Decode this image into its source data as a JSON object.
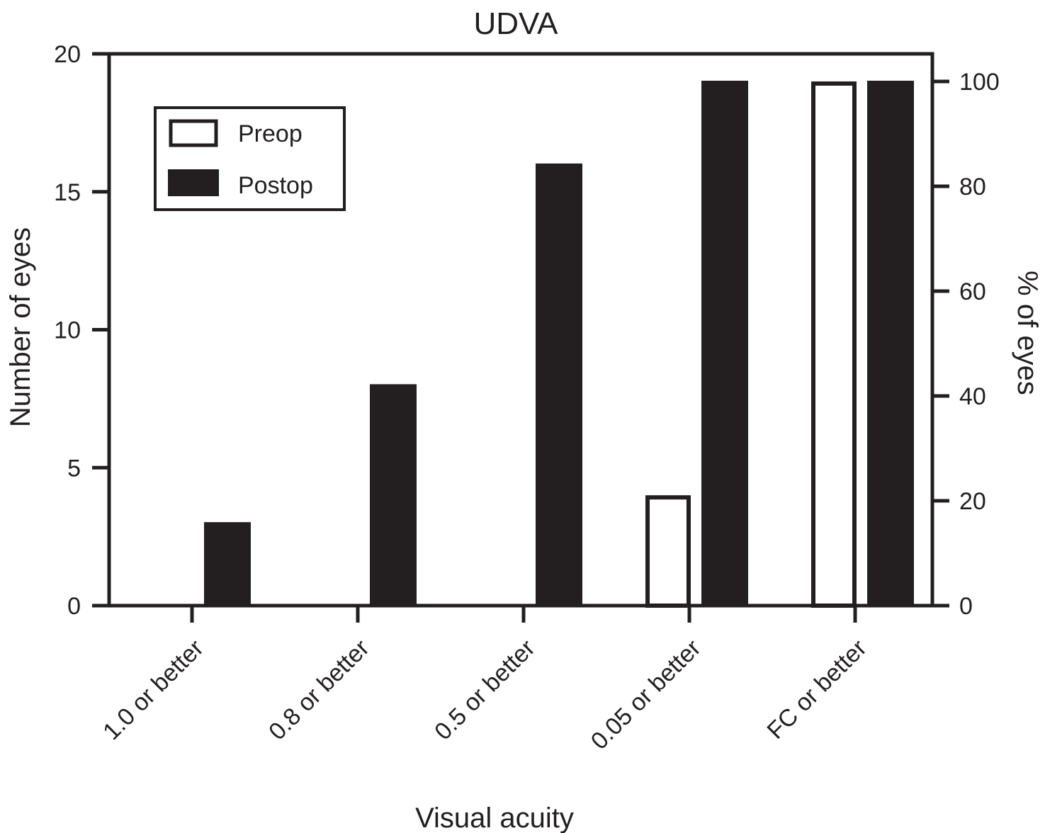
{
  "chart_data": {
    "type": "bar",
    "title": "UDVA",
    "xlabel": "Visual acuity",
    "ylabel": "Number of eyes",
    "y2label": "% of eyes",
    "ylim": [
      0,
      20
    ],
    "y2lim": [
      0,
      100
    ],
    "yticks": [
      0,
      5,
      10,
      15,
      20
    ],
    "y2ticks": [
      0,
      20,
      40,
      60,
      80,
      100
    ],
    "categories": [
      "1.0 or better",
      "0.8 or better",
      "0.5 or better",
      "0.05 or better",
      "FC or better"
    ],
    "series": [
      {
        "name": "Preop",
        "values": [
          0,
          0,
          0,
          4,
          19
        ],
        "fill": "#ffffff",
        "stroke": "#231f20"
      },
      {
        "name": "Postop",
        "values": [
          3,
          8,
          16,
          19,
          19
        ],
        "fill": "#231f20",
        "stroke": "#231f20"
      }
    ],
    "legend_position": "top-left",
    "grid": false
  }
}
